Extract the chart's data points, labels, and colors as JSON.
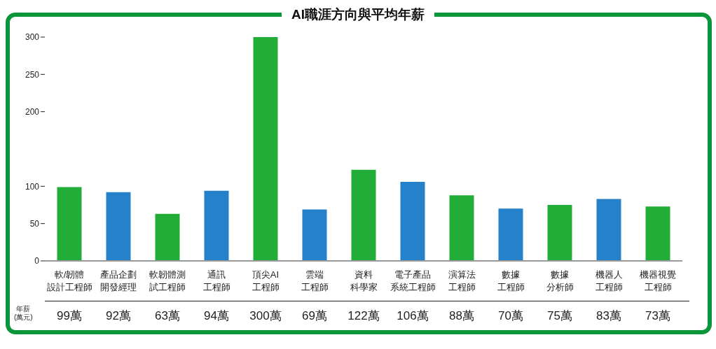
{
  "chart_data": {
    "type": "bar",
    "title": "AI職涯方向與平均年薪",
    "categories": [
      "軟/韌體設計工程師",
      "產品企劃開發經理",
      "軟韌體測試工程師",
      "通訊工程師",
      "頂尖AI工程師",
      "雲端工程師",
      "資料科學家",
      "電子產品系統工程師",
      "演算法工程師",
      "數據工程師",
      "數據分析師",
      "機器人工程師",
      "機器視覺工程師"
    ],
    "values": [
      99,
      92,
      63,
      94,
      300,
      69,
      122,
      106,
      88,
      70,
      75,
      83,
      73
    ],
    "value_labels": [
      "99萬",
      "92萬",
      "63萬",
      "94萬",
      "300萬",
      "69萬",
      "122萬",
      "106萬",
      "88萬",
      "70萬",
      "75萬",
      "83萬",
      "73萬"
    ],
    "colors": [
      "#22ac38",
      "#2581c9",
      "#22ac38",
      "#2581c9",
      "#22ac38",
      "#2581c9",
      "#22ac38",
      "#2581c9",
      "#22ac38",
      "#2581c9",
      "#22ac38",
      "#2581c9",
      "#22ac38"
    ],
    "ylim": [
      0,
      300
    ],
    "yticks": [
      0,
      50,
      100,
      200,
      250,
      300
    ],
    "grid": false,
    "legend": false,
    "annotations": [
      "年薪\n(萬元)"
    ]
  }
}
